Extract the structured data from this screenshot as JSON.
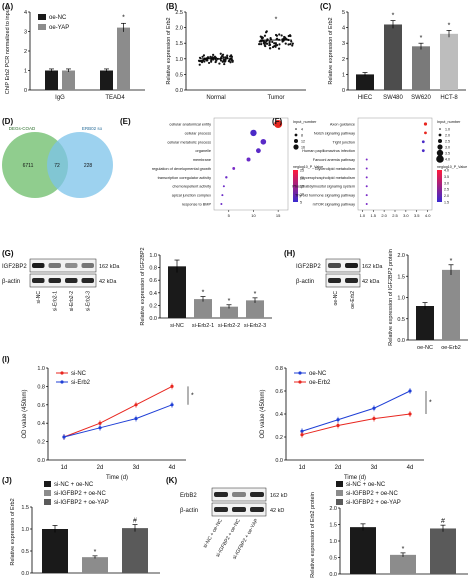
{
  "panels": {
    "A": {
      "letter": "(A)",
      "ylabel": "ChIP Erb2 PCR normalized to input",
      "categories": [
        "IgG",
        "TEAD4"
      ],
      "series": [
        {
          "name": "oe-NC",
          "values": [
            1.0,
            1.0
          ],
          "err": [
            0.08,
            0.08
          ],
          "color": "#1a1a1a"
        },
        {
          "name": "oe-YAP",
          "values": [
            1.0,
            3.2
          ],
          "err": [
            0.08,
            0.22
          ],
          "color": "#8c8c8c"
        }
      ],
      "yticks": [
        "0",
        "1",
        "2",
        "3",
        "4"
      ],
      "ylim": [
        0,
        4
      ],
      "star": "*"
    },
    "B": {
      "letter": "(B)",
      "ylabel": "Relative expression of Erb2",
      "categories": [
        "Normal",
        "Tumor"
      ],
      "yticks": [
        "0.0",
        "0.5",
        "1.0",
        "1.5",
        "2.0",
        "2.5"
      ],
      "ylim": [
        0,
        2.5
      ],
      "means": [
        1.0,
        1.6
      ],
      "spread": [
        0.12,
        0.18
      ],
      "star": "*"
    },
    "C": {
      "letter": "(C)",
      "ylabel": "Relative expression of Erb2",
      "categories": [
        "HIEC",
        "SW480",
        "SW620",
        "HCT-8"
      ],
      "values": [
        1.0,
        4.2,
        2.8,
        3.6
      ],
      "err": [
        0.12,
        0.25,
        0.2,
        0.22
      ],
      "colors": [
        "#1a1a1a",
        "#4d4d4d",
        "#7a7a7a",
        "#bdbdbd"
      ],
      "yticks": [
        "0",
        "1",
        "2",
        "3",
        "4",
        "5"
      ],
      "ylim": [
        0,
        5
      ],
      "stars": [
        "",
        "*",
        "*",
        "*"
      ]
    },
    "D": {
      "letter": "(D)",
      "left_label": "DEGs-COAD",
      "right_label": "ERB02 so",
      "left_count": "6711",
      "overlap_count": "72",
      "right_count": "228"
    },
    "E": {
      "letter": "(E)",
      "terms": [
        "cellular anatomical entity",
        "cellular process",
        "cellular metabolic process",
        "organelle",
        "membrane",
        "regulation of developmental growth",
        "transcription coregulator activity",
        "chemorepellent activity",
        "apical junction complex",
        "response to BMP"
      ],
      "x": [
        15,
        10,
        12,
        11,
        9,
        6,
        4.5,
        4,
        3.7,
        3.5
      ],
      "size": [
        16,
        12,
        10,
        8,
        6,
        3,
        2,
        1,
        1,
        1
      ],
      "color": [
        "#e8261f",
        "#4a2ac7",
        "#5a2ac7",
        "#5a2ac7",
        "#6a2ac7",
        "#7a2ac7",
        "#6a2ac7",
        "#6a2ac7",
        "#6a2ac7",
        "#6a2ac7"
      ],
      "xticks": [
        "5",
        "10",
        "15"
      ],
      "xlim": [
        2,
        17
      ],
      "legend_title": "Input_number",
      "legend_sizes": [
        "4",
        "8",
        "12",
        "16"
      ],
      "color_title": "neglog10_P_Value",
      "color_ticks": [
        "5",
        "10",
        "15",
        "20",
        "25"
      ]
    },
    "F": {
      "letter": "(F)",
      "terms": [
        "Axon guidance",
        "Notch signaling pathway",
        "Tight junction",
        "Human papillomavirus infection",
        "Fanconi anemia pathway",
        "Glycerolipid metabolism",
        "Glycerophospholipid metabolism",
        "Phosphatidylinositol signaling system",
        "Thyroid hormone signaling pathway",
        "mTOR signaling pathway"
      ],
      "x": [
        3.9,
        3.9,
        3.8,
        3.8,
        1.2,
        1.2,
        1.2,
        1.2,
        1.2,
        1.2
      ],
      "size": [
        4,
        3,
        3,
        3,
        1,
        1,
        1,
        1,
        1,
        1
      ],
      "color": [
        "#e8261f",
        "#e8261f",
        "#4a2ac7",
        "#4a2ac7",
        "#7a2ac7",
        "#7a2ac7",
        "#7a2ac7",
        "#7a2ac7",
        "#7a2ac7",
        "#7a2ac7"
      ],
      "xticks": [
        "1.0",
        "1.5",
        "2.0",
        "2.5",
        "3.0",
        "3.5",
        "4.0"
      ],
      "xlim": [
        0.8,
        4.2
      ],
      "legend_title": "Input_number",
      "legend_sizes": [
        "1.0",
        "2.0",
        "2.5",
        "3.0",
        "3.5",
        "4.0"
      ],
      "color_title": "neglog10_P_Value",
      "color_ticks": [
        "1.5",
        "2.0",
        "2.5",
        "3.0",
        "3.5",
        "4.0"
      ]
    },
    "G": {
      "letter": "(G)",
      "blot_top": "IGF2BP2",
      "blot_bottom": "β-actin",
      "kda_top": "162 kDa",
      "kda_bottom": "42 kDa",
      "lanes": [
        "si-NC",
        "si-Erb2-1",
        "si-Erb2-2",
        "si-Erb2-3"
      ],
      "ylabel": "Relative expression of IGF2BP2",
      "values": [
        0.82,
        0.3,
        0.18,
        0.28
      ],
      "err": [
        0.1,
        0.04,
        0.03,
        0.04
      ],
      "colors": [
        "#1a1a1a",
        "#8c8c8c",
        "#8c8c8c",
        "#8c8c8c"
      ],
      "yticks": [
        "0.0",
        "0.2",
        "0.4",
        "0.6",
        "0.8",
        "1.0"
      ],
      "ylim": [
        0,
        1.0
      ],
      "stars": [
        "",
        "*",
        "*",
        "*"
      ]
    },
    "H": {
      "letter": "(H)",
      "blot_top": "IGF2BP2",
      "blot_bottom": "β-actin",
      "kda_top": "162 kDa",
      "kda_bottom": "42 kDa",
      "lanes": [
        "oe-NC",
        "oe-Erb2"
      ],
      "ylabel": "Relative expression of IGF2BP2 protein",
      "values": [
        0.8,
        1.65
      ],
      "err": [
        0.08,
        0.12
      ],
      "colors": [
        "#1a1a1a",
        "#8c8c8c"
      ],
      "yticks": [
        "0.0",
        "0.5",
        "1.0",
        "1.5",
        "2.0"
      ],
      "ylim": [
        0,
        2.0
      ],
      "stars": [
        "",
        "*"
      ]
    },
    "I1": {
      "letter": "(I)",
      "ylabel": "OD value (450nm)",
      "xlabel": "Time (d)",
      "x": [
        "1d",
        "2d",
        "3d",
        "4d"
      ],
      "series": [
        {
          "name": "si-NC",
          "values": [
            0.25,
            0.4,
            0.6,
            0.8
          ],
          "color": "#e8261f"
        },
        {
          "name": "si-Erb2",
          "values": [
            0.25,
            0.35,
            0.45,
            0.6
          ],
          "color": "#1f3fd6"
        }
      ],
      "yticks": [
        "0.0",
        "0.2",
        "0.4",
        "0.6",
        "0.8",
        "1.0"
      ],
      "ylim": [
        0,
        1.0
      ],
      "star": "*"
    },
    "I2": {
      "ylabel": "OD value (450nm)",
      "xlabel": "Time (d)",
      "x": [
        "1d",
        "2d",
        "3d",
        "4d"
      ],
      "series": [
        {
          "name": "oe-NC",
          "values": [
            0.25,
            0.35,
            0.45,
            0.6
          ],
          "color": "#1f3fd6"
        },
        {
          "name": "oe-Erb2",
          "values": [
            0.22,
            0.3,
            0.36,
            0.4
          ],
          "color": "#e8261f"
        }
      ],
      "yticks": [
        "0.0",
        "0.2",
        "0.4",
        "0.6",
        "0.8"
      ],
      "ylim": [
        0,
        0.8
      ],
      "star": "*"
    },
    "J": {
      "letter": "(J)",
      "ylabel": "Relative expression of Erb2",
      "legend": [
        "si-NC + oe-NC",
        "si-IGFBP2 + oe-NC",
        "si-IGFBP2 + oe-YAP"
      ],
      "values": [
        1.0,
        0.36,
        1.02
      ],
      "err": [
        0.08,
        0.03,
        0.08
      ],
      "colors": [
        "#1a1a1a",
        "#8c8c8c",
        "#5a5a5a"
      ],
      "yticks": [
        "0.0",
        "0.5",
        "1.0",
        "1.5"
      ],
      "ylim": [
        0,
        1.5
      ],
      "stars": [
        "",
        "*",
        "#"
      ]
    },
    "K": {
      "letter": "(K)",
      "blot_top": "ErbB2",
      "blot_bottom": "β-actin",
      "kda_top": "162 kD",
      "kda_bottom": "42 kD",
      "lanes": [
        "si-NC + oe-NC",
        "si-IGFBP2 + oe-NC",
        "si-IGFBP2 + oe-YAP"
      ],
      "ylabel": "Relative expression of Erb2 protein",
      "legend": [
        "si-NC + oe-NC",
        "si-IGFBP2 + oe-NC",
        "si-IGFBP2 + oe-YAP"
      ],
      "values": [
        1.42,
        0.58,
        1.38
      ],
      "err": [
        0.1,
        0.06,
        0.1
      ],
      "colors": [
        "#1a1a1a",
        "#8c8c8c",
        "#5a5a5a"
      ],
      "yticks": [
        "0.0",
        "0.5",
        "1.0",
        "1.5",
        "2.0"
      ],
      "ylim": [
        0,
        2.0
      ],
      "stars": [
        "",
        "*",
        "#"
      ]
    }
  },
  "chart_data": [
    {
      "type": "bar",
      "panel": "A",
      "categories": [
        "IgG",
        "TEAD4"
      ],
      "series": [
        {
          "name": "oe-NC",
          "values": [
            1.0,
            1.0
          ]
        },
        {
          "name": "oe-YAP",
          "values": [
            1.0,
            3.2
          ]
        }
      ],
      "ylabel": "ChIP Erb2 PCR normalized to input",
      "ylim": [
        0,
        4
      ]
    },
    {
      "type": "scatter",
      "panel": "B",
      "categories": [
        "Normal",
        "Tumor"
      ],
      "means": [
        1.0,
        1.6
      ],
      "ylabel": "Relative expression of Erb2",
      "ylim": [
        0,
        2.5
      ]
    },
    {
      "type": "bar",
      "panel": "C",
      "categories": [
        "HIEC",
        "SW480",
        "SW620",
        "HCT-8"
      ],
      "values": [
        1.0,
        4.2,
        2.8,
        3.6
      ],
      "ylabel": "Relative expression of Erb2",
      "ylim": [
        0,
        5
      ]
    },
    {
      "type": "bar",
      "panel": "G",
      "categories": [
        "si-NC",
        "si-Erb2-1",
        "si-Erb2-2",
        "si-Erb2-3"
      ],
      "values": [
        0.82,
        0.3,
        0.18,
        0.28
      ],
      "ylabel": "Relative expression of IGF2BP2",
      "ylim": [
        0,
        1.0
      ]
    },
    {
      "type": "bar",
      "panel": "H",
      "categories": [
        "oe-NC",
        "oe-Erb2"
      ],
      "values": [
        0.8,
        1.65
      ],
      "ylabel": "Relative expression of IGF2BP2 protein",
      "ylim": [
        0,
        2.0
      ]
    },
    {
      "type": "line",
      "panel": "I-left",
      "x": [
        "1d",
        "2d",
        "3d",
        "4d"
      ],
      "series": [
        {
          "name": "si-NC",
          "values": [
            0.25,
            0.4,
            0.6,
            0.8
          ]
        },
        {
          "name": "si-Erb2",
          "values": [
            0.25,
            0.35,
            0.45,
            0.6
          ]
        }
      ],
      "xlabel": "Time (d)",
      "ylabel": "OD value (450nm)",
      "ylim": [
        0,
        1.0
      ]
    },
    {
      "type": "line",
      "panel": "I-right",
      "x": [
        "1d",
        "2d",
        "3d",
        "4d"
      ],
      "series": [
        {
          "name": "oe-NC",
          "values": [
            0.25,
            0.35,
            0.45,
            0.6
          ]
        },
        {
          "name": "oe-Erb2",
          "values": [
            0.22,
            0.3,
            0.36,
            0.4
          ]
        }
      ],
      "xlabel": "Time (d)",
      "ylabel": "OD value (450nm)",
      "ylim": [
        0,
        0.8
      ]
    },
    {
      "type": "bar",
      "panel": "J",
      "categories": [
        "si-NC + oe-NC",
        "si-IGFBP2 + oe-NC",
        "si-IGFBP2 + oe-YAP"
      ],
      "values": [
        1.0,
        0.36,
        1.02
      ],
      "ylabel": "Relative expression of Erb2",
      "ylim": [
        0,
        1.5
      ]
    },
    {
      "type": "bar",
      "panel": "K",
      "categories": [
        "si-NC + oe-NC",
        "si-IGFBP2 + oe-NC",
        "si-IGFBP2 + oe-YAP"
      ],
      "values": [
        1.42,
        0.58,
        1.38
      ],
      "ylabel": "Relative expression of Erb2 protein",
      "ylim": [
        0,
        2.0
      ]
    }
  ]
}
